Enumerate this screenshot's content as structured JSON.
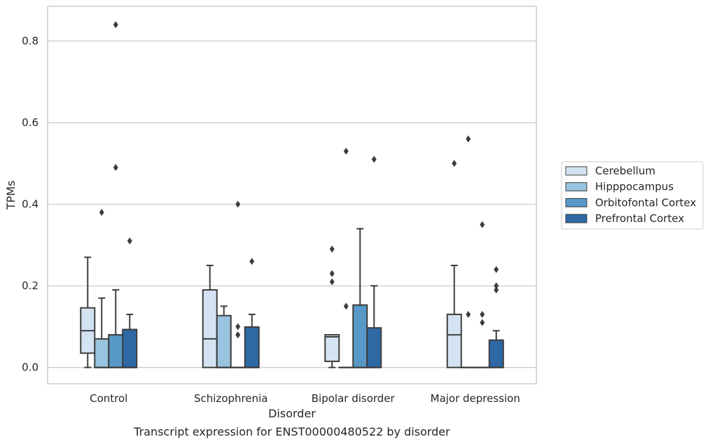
{
  "chart_data": {
    "type": "boxplot",
    "caption": "Transcript expression for ENST00000480522 by disorder",
    "xlabel": "Disorder",
    "ylabel": "TPMs",
    "ylim": [
      -0.04,
      0.885
    ],
    "yticks": [
      0.0,
      0.2,
      0.4,
      0.6,
      0.8
    ],
    "ytick_labels": [
      "0.0",
      "0.2",
      "0.4",
      "0.6",
      "0.8"
    ],
    "grid": "horizontal",
    "legend_position": "right",
    "categories": [
      "Control",
      "Schizophrenia",
      "Bipolar disorder",
      "Major depression"
    ],
    "series": [
      {
        "name": "Cerebellum",
        "color": "#d4e3f3",
        "boxes": [
          {
            "q1": 0.035,
            "median": 0.09,
            "q3": 0.146,
            "whislo": 0.0,
            "whishi": 0.27,
            "fliers": []
          },
          {
            "q1": 0.0,
            "median": 0.07,
            "q3": 0.19,
            "whislo": 0.0,
            "whishi": 0.25,
            "fliers": []
          },
          {
            "q1": 0.015,
            "median": 0.075,
            "q3": 0.08,
            "whislo": 0.0,
            "whishi": 0.08,
            "fliers": [
              0.29,
              0.23,
              0.21
            ]
          },
          {
            "q1": 0.0,
            "median": 0.08,
            "q3": 0.13,
            "whislo": 0.0,
            "whishi": 0.25,
            "fliers": [
              0.5
            ]
          }
        ]
      },
      {
        "name": "Hipppocampus",
        "color": "#98c4df",
        "boxes": [
          {
            "q1": 0.0,
            "median": 0.0,
            "q3": 0.07,
            "whislo": 0.0,
            "whishi": 0.17,
            "fliers": [
              0.38
            ]
          },
          {
            "q1": 0.0,
            "median": 0.0,
            "q3": 0.127,
            "whislo": 0.0,
            "whishi": 0.15,
            "fliers": []
          },
          {
            "q1": 0.0,
            "median": 0.0,
            "q3": 0.0,
            "whislo": 0.0,
            "whishi": 0.0,
            "fliers": [
              0.53,
              0.15
            ]
          },
          {
            "q1": 0.0,
            "median": 0.0,
            "q3": 0.0,
            "whislo": 0.0,
            "whishi": 0.0,
            "fliers": [
              0.56,
              0.13
            ]
          }
        ]
      },
      {
        "name": "Orbitofontal Cortex",
        "color": "#5798c6",
        "boxes": [
          {
            "q1": 0.0,
            "median": 0.0,
            "q3": 0.08,
            "whislo": 0.0,
            "whishi": 0.19,
            "fliers": [
              0.84,
              0.49
            ]
          },
          {
            "q1": 0.0,
            "median": 0.0,
            "q3": 0.0,
            "whislo": 0.0,
            "whishi": 0.0,
            "fliers": [
              0.4,
              0.1,
              0.08
            ]
          },
          {
            "q1": 0.0,
            "median": 0.0,
            "q3": 0.153,
            "whislo": 0.0,
            "whishi": 0.34,
            "fliers": []
          },
          {
            "q1": 0.0,
            "median": 0.0,
            "q3": 0.0,
            "whislo": 0.0,
            "whishi": 0.0,
            "fliers": [
              0.35,
              0.13,
              0.11
            ]
          }
        ]
      },
      {
        "name": "Prefrontal Cortex",
        "color": "#2e69a6",
        "boxes": [
          {
            "q1": 0.0,
            "median": 0.0,
            "q3": 0.093,
            "whislo": 0.0,
            "whishi": 0.13,
            "fliers": [
              0.31
            ]
          },
          {
            "q1": 0.0,
            "median": 0.0,
            "q3": 0.099,
            "whislo": 0.0,
            "whishi": 0.13,
            "fliers": [
              0.26
            ]
          },
          {
            "q1": 0.0,
            "median": 0.0,
            "q3": 0.097,
            "whislo": 0.0,
            "whishi": 0.2,
            "fliers": [
              0.51
            ]
          },
          {
            "q1": 0.0,
            "median": 0.0,
            "q3": 0.067,
            "whislo": 0.0,
            "whishi": 0.09,
            "fliers": [
              0.24,
              0.2,
              0.19
            ]
          }
        ]
      }
    ]
  }
}
